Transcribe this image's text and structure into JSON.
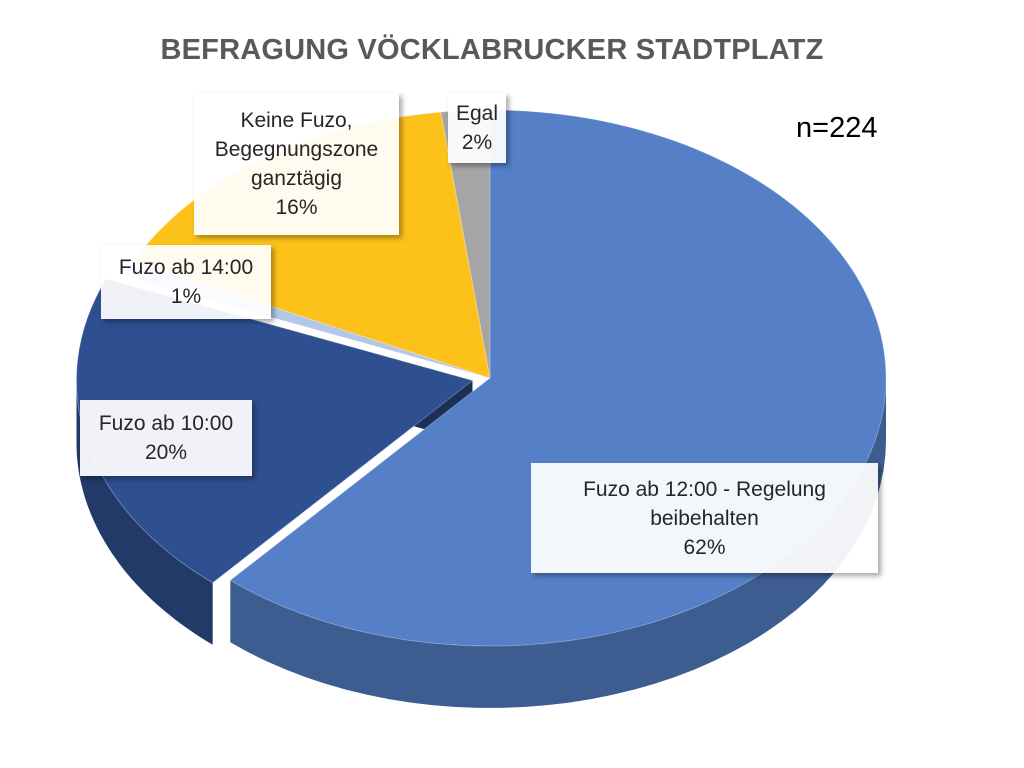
{
  "chart_data": {
    "type": "pie",
    "title": "BEFRAGUNG VÖCKLABRUCKER STADTPLATZ",
    "annotation": "n=224",
    "slices": [
      {
        "label": "Fuzo ab 12:00 - Regelung beibehalten",
        "percent_label": "62%",
        "value": 62,
        "color": "#5580c8"
      },
      {
        "label": "Fuzo ab 10:00",
        "percent_label": "20%",
        "value": 20,
        "color": "#2e5090"
      },
      {
        "label": "Fuzo ab 14:00",
        "percent_label": "1%",
        "value": 1,
        "color": "#b4c7e7"
      },
      {
        "label": "Keine Fuzo, Begegnungszone ganztägig",
        "percent_label": "16%",
        "value": 16,
        "color": "#fcc21a"
      },
      {
        "label": "Egal",
        "percent_label": "2%",
        "value": 2,
        "color": "#a5a5a5"
      }
    ],
    "legend": "none",
    "style": "3d"
  }
}
